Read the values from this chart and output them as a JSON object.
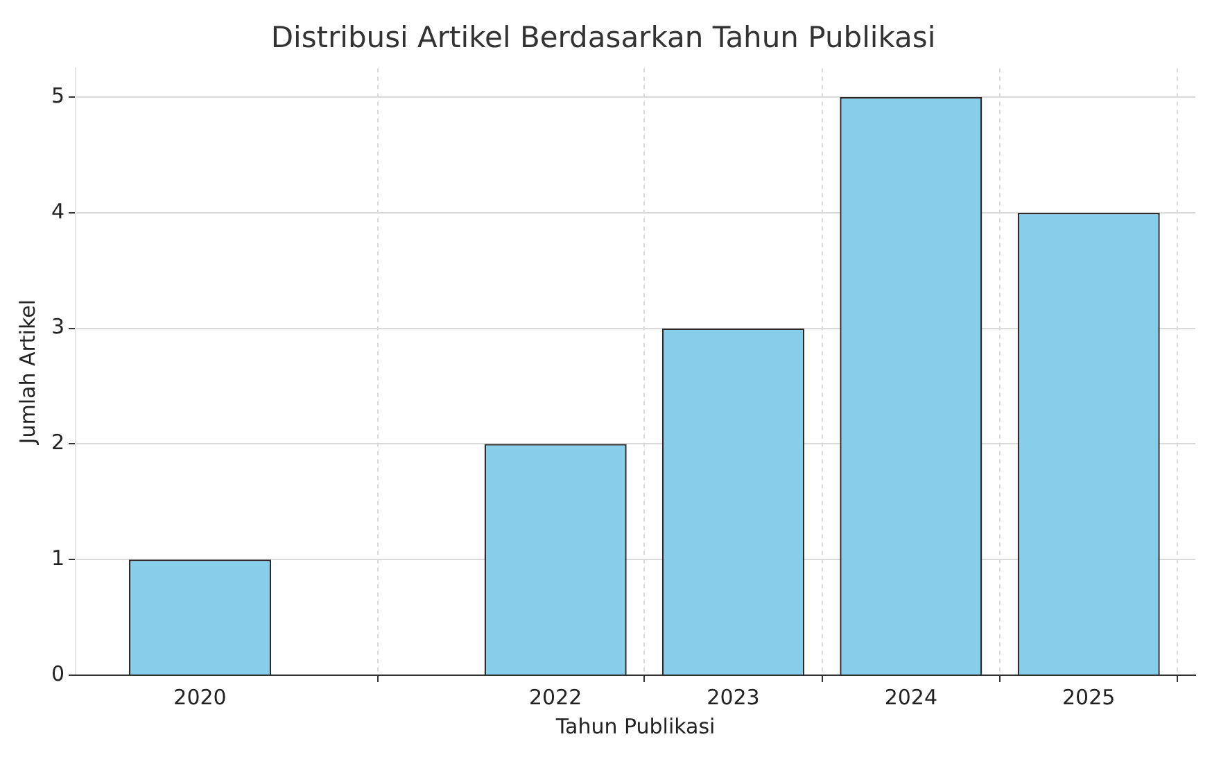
{
  "chart_data": {
    "type": "bar",
    "title": "Distribusi Artikel Berdasarkan Tahun Publikasi",
    "xlabel": "Tahun Publikasi",
    "ylabel": "Jumlah Artikel",
    "x": [
      2020,
      2022,
      2023,
      2024,
      2025
    ],
    "values": [
      1,
      2,
      3,
      5,
      4
    ],
    "color": "#87ceeb",
    "xlim": [
      2019.3,
      2025.6
    ],
    "xticks": [
      2020,
      2022,
      2023,
      2024,
      2025
    ],
    "ylim": [
      0,
      5.25
    ],
    "yticks": [
      0,
      1,
      2,
      3,
      4,
      5
    ],
    "grid": true
  }
}
